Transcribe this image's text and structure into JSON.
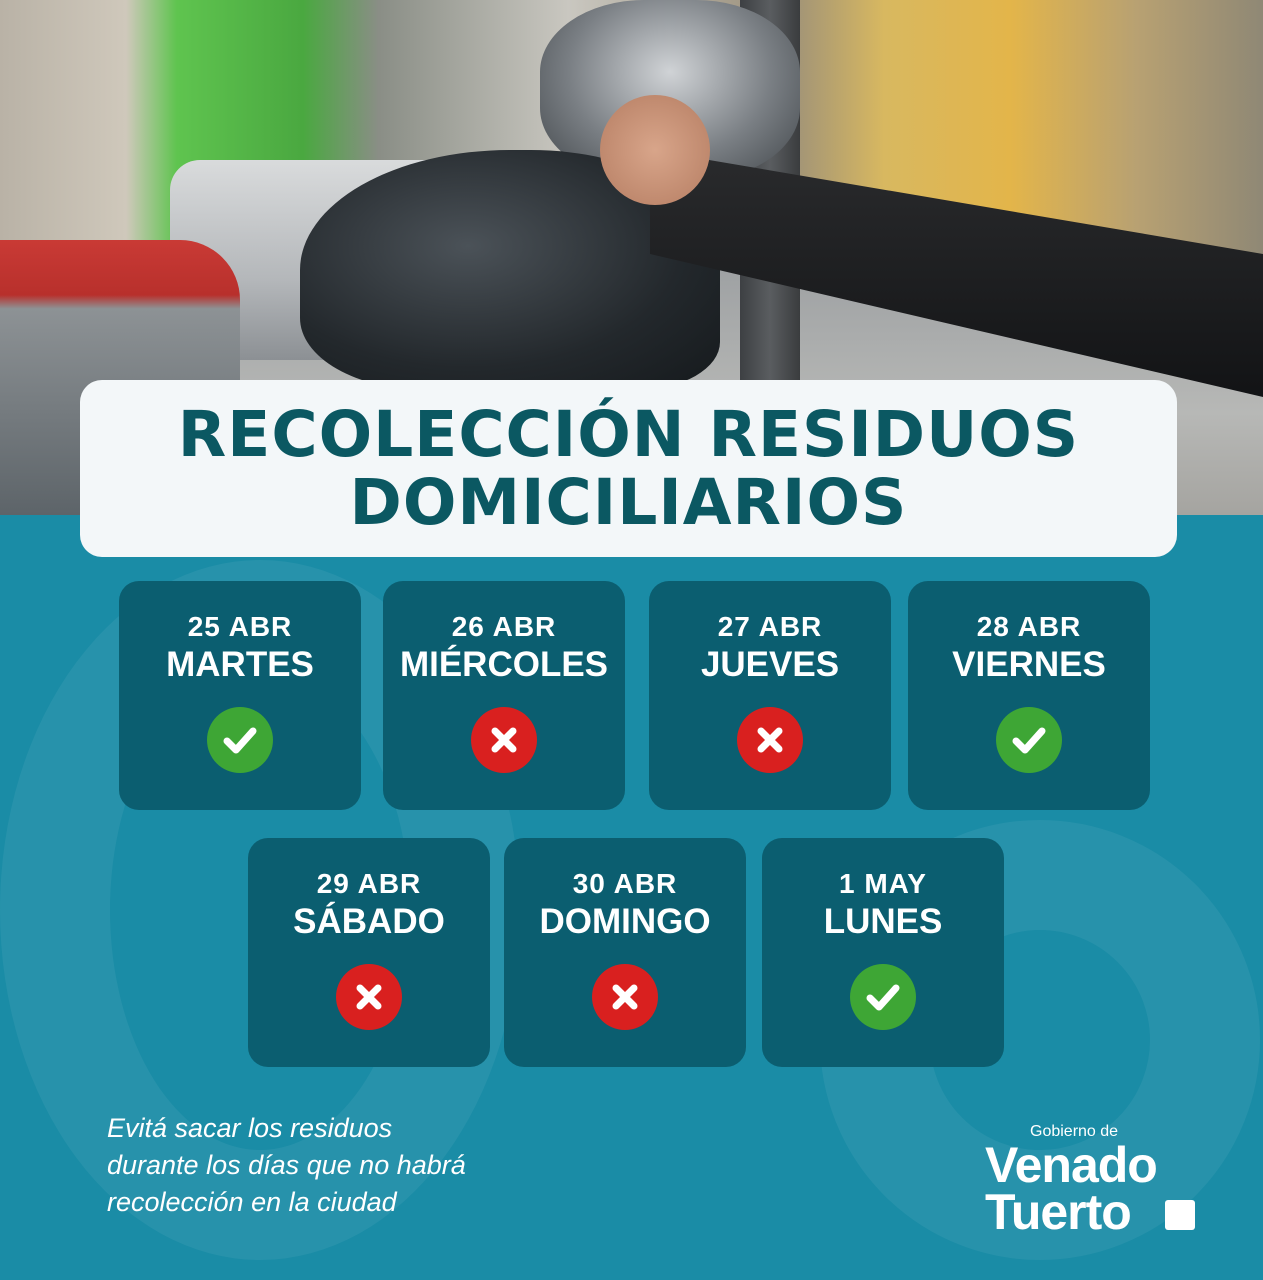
{
  "title": {
    "line1": "RECOLECCIÓN RESIDUOS",
    "line2": "DOMICILIARIOS"
  },
  "days": [
    {
      "date": "25 ABR",
      "day": "MARTES",
      "collection": true,
      "icon": "check-icon"
    },
    {
      "date": "26 ABR",
      "day": "MIÉRCOLES",
      "collection": false,
      "icon": "x-icon"
    },
    {
      "date": "27 ABR",
      "day": "JUEVES",
      "collection": false,
      "icon": "x-icon"
    },
    {
      "date": "28 ABR",
      "day": "VIERNES",
      "collection": true,
      "icon": "check-icon"
    },
    {
      "date": "29 ABR",
      "day": "SÁBADO",
      "collection": false,
      "icon": "x-icon"
    },
    {
      "date": "30 ABR",
      "day": "DOMINGO",
      "collection": false,
      "icon": "x-icon"
    },
    {
      "date": "1 MAY",
      "day": "LUNES",
      "collection": true,
      "icon": "check-icon"
    }
  ],
  "note": {
    "line1": "Evitá sacar los residuos",
    "line2": "durante los días que no habrá",
    "line3": "recolección en la ciudad"
  },
  "logo": {
    "line1": "Gobierno de",
    "line2": "Venado",
    "line3": "Tuerto"
  },
  "colors": {
    "background": "#1a8ca6",
    "card": "#0b5e70",
    "title_text": "#0b5862",
    "yes": "#3ea635",
    "no": "#d9201f"
  }
}
